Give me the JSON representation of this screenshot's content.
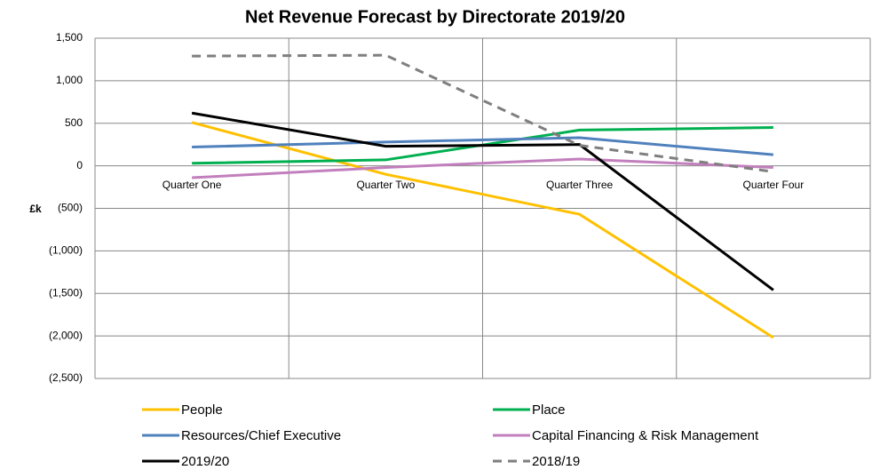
{
  "chart_data": {
    "type": "line",
    "title": "Net Revenue Forecast by Directorate 2019/20",
    "y_label": "£k",
    "categories": [
      "Quarter One",
      "Quarter Two",
      "Quarter Three",
      "Quarter Four"
    ],
    "series": [
      {
        "name": "People",
        "color": "#ffc000",
        "dashed": false,
        "values": [
          510,
          -100,
          -570,
          -2020
        ]
      },
      {
        "name": "Place",
        "color": "#00b050",
        "dashed": false,
        "values": [
          30,
          70,
          420,
          450
        ]
      },
      {
        "name": "Resources/Chief Executive",
        "color": "#4f81bd",
        "dashed": false,
        "values": [
          220,
          280,
          330,
          130
        ]
      },
      {
        "name": "Capital Financing & Risk Management",
        "color": "#c27fbd",
        "dashed": false,
        "values": [
          -140,
          -20,
          80,
          -20
        ]
      },
      {
        "name": "2019/20",
        "color": "#000000",
        "dashed": false,
        "values": [
          620,
          230,
          250,
          -1460
        ]
      },
      {
        "name": "2018/19",
        "color": "#7f7f7f",
        "dashed": true,
        "values": [
          1290,
          1300,
          240,
          -70
        ]
      }
    ],
    "ylim": [
      -2500,
      1500
    ],
    "yticks": [
      {
        "value": -2500,
        "label": "(2,500)"
      },
      {
        "value": -2000,
        "label": "(2,000)"
      },
      {
        "value": -1500,
        "label": "(1,500)"
      },
      {
        "value": -1000,
        "label": "(1,000)"
      },
      {
        "value": -500,
        "label": "(500)"
      },
      0,
      500,
      {
        "value": 1000,
        "label": "1,000"
      },
      {
        "value": 1500,
        "label": "1,500"
      }
    ],
    "grid": true,
    "legend": "bottom"
  }
}
